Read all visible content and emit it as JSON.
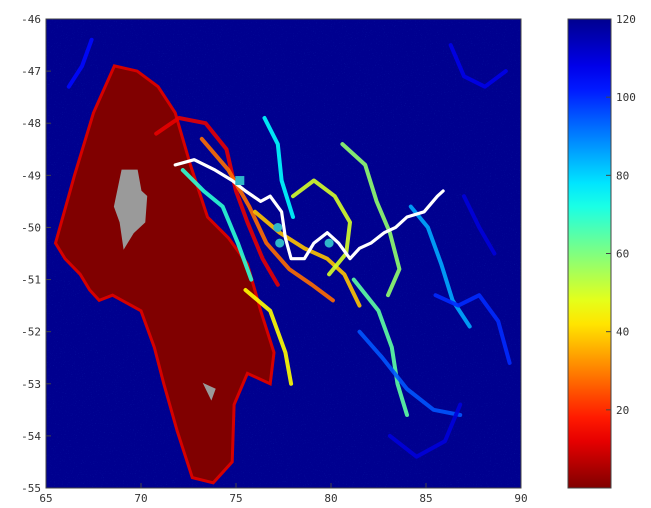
{
  "chart_data": {
    "type": "heatmap",
    "title": "",
    "xlabel": "",
    "ylabel": "",
    "xlim": [
      65,
      90
    ],
    "ylim": [
      -55,
      -46
    ],
    "x_ticks": [
      65,
      70,
      75,
      80,
      85,
      90
    ],
    "y_ticks": [
      -46,
      -47,
      -48,
      -49,
      -50,
      -51,
      -52,
      -53,
      -54,
      -55
    ],
    "x_tick_labels": [
      "65",
      "70",
      "75",
      "80",
      "85",
      "90"
    ],
    "y_tick_labels": [
      "-46",
      "-47",
      "-48",
      "-49",
      "-50",
      "-51",
      "-52",
      "-53",
      "-54",
      "-55"
    ],
    "colorbar": {
      "colormap": "jet-reversed",
      "range": [
        0,
        120
      ],
      "ticks": [
        20,
        40,
        60,
        80,
        100,
        120
      ],
      "tick_labels": [
        "20",
        "40",
        "60",
        "80",
        "100",
        "120"
      ]
    },
    "background_value": 120,
    "colors": {
      "background": "#00008f",
      "land": "#9a9a9a",
      "track": "#ffffff",
      "markers": "#2fb7c9"
    },
    "low_value_region": {
      "value_range": [
        0,
        10
      ],
      "outline_lonlat": [
        [
          65.5,
          -50.3
        ],
        [
          66.5,
          -49.0
        ],
        [
          67.5,
          -47.8
        ],
        [
          68.6,
          -46.9
        ],
        [
          69.8,
          -47.0
        ],
        [
          70.9,
          -47.3
        ],
        [
          71.8,
          -47.8
        ],
        [
          72.6,
          -48.8
        ],
        [
          73.5,
          -49.8
        ],
        [
          74.6,
          -50.2
        ],
        [
          75.6,
          -50.7
        ],
        [
          76.3,
          -51.6
        ],
        [
          77.0,
          -52.4
        ],
        [
          76.8,
          -53.0
        ],
        [
          75.6,
          -52.8
        ],
        [
          74.9,
          -53.4
        ],
        [
          74.8,
          -54.5
        ],
        [
          73.8,
          -54.9
        ],
        [
          72.7,
          -54.8
        ],
        [
          71.9,
          -53.9
        ],
        [
          71.2,
          -53.0
        ],
        [
          70.7,
          -52.3
        ],
        [
          70.0,
          -51.6
        ],
        [
          68.5,
          -51.3
        ],
        [
          67.8,
          -51.4
        ],
        [
          67.3,
          -51.2
        ],
        [
          66.8,
          -50.9
        ],
        [
          66.0,
          -50.6
        ]
      ]
    },
    "filaments": [
      {
        "value": 12,
        "path": [
          [
            70.8,
            -48.2
          ],
          [
            72.0,
            -47.9
          ],
          [
            73.4,
            -48.0
          ],
          [
            74.5,
            -48.5
          ],
          [
            75.0,
            -49.3
          ],
          [
            75.6,
            -49.9
          ],
          [
            76.4,
            -50.6
          ],
          [
            77.2,
            -51.1
          ]
        ]
      },
      {
        "value": 28,
        "path": [
          [
            73.2,
            -48.3
          ],
          [
            74.6,
            -48.9
          ],
          [
            75.7,
            -49.6
          ],
          [
            76.6,
            -50.3
          ],
          [
            77.8,
            -50.8
          ],
          [
            79.0,
            -51.1
          ],
          [
            80.1,
            -51.4
          ]
        ]
      },
      {
        "value": 38,
        "path": [
          [
            76.0,
            -49.7
          ],
          [
            77.3,
            -50.1
          ],
          [
            78.6,
            -50.4
          ],
          [
            79.8,
            -50.6
          ],
          [
            80.7,
            -50.9
          ],
          [
            81.5,
            -51.5
          ]
        ]
      },
      {
        "value": 45,
        "path": [
          [
            75.5,
            -51.2
          ],
          [
            76.8,
            -51.6
          ],
          [
            77.6,
            -52.4
          ],
          [
            77.9,
            -53.0
          ]
        ]
      },
      {
        "value": 50,
        "path": [
          [
            78.0,
            -49.4
          ],
          [
            79.1,
            -49.1
          ],
          [
            80.2,
            -49.4
          ],
          [
            81.0,
            -49.9
          ],
          [
            80.8,
            -50.5
          ],
          [
            79.9,
            -50.9
          ]
        ]
      },
      {
        "value": 58,
        "path": [
          [
            80.6,
            -48.4
          ],
          [
            81.8,
            -48.8
          ],
          [
            82.4,
            -49.5
          ],
          [
            83.1,
            -50.1
          ],
          [
            83.6,
            -50.8
          ],
          [
            83.0,
            -51.3
          ]
        ]
      },
      {
        "value": 64,
        "path": [
          [
            81.2,
            -51.0
          ],
          [
            82.5,
            -51.6
          ],
          [
            83.2,
            -52.3
          ],
          [
            83.5,
            -53.0
          ],
          [
            84.0,
            -53.6
          ]
        ]
      },
      {
        "value": 70,
        "path": [
          [
            72.2,
            -48.9
          ],
          [
            73.3,
            -49.3
          ],
          [
            74.3,
            -49.6
          ],
          [
            75.1,
            -50.3
          ],
          [
            75.8,
            -51.0
          ]
        ]
      },
      {
        "value": 75,
        "path": [
          [
            76.5,
            -47.9
          ],
          [
            77.2,
            -48.4
          ],
          [
            77.4,
            -49.1
          ],
          [
            78.0,
            -49.8
          ]
        ]
      },
      {
        "value": 85,
        "path": [
          [
            84.2,
            -49.6
          ],
          [
            85.1,
            -50.0
          ],
          [
            85.8,
            -50.7
          ],
          [
            86.4,
            -51.4
          ],
          [
            87.3,
            -51.9
          ]
        ]
      },
      {
        "value": 95,
        "path": [
          [
            81.5,
            -52.0
          ],
          [
            82.7,
            -52.5
          ],
          [
            84.0,
            -53.1
          ],
          [
            85.4,
            -53.5
          ],
          [
            86.8,
            -53.6
          ]
        ]
      },
      {
        "value": 100,
        "path": [
          [
            85.5,
            -51.3
          ],
          [
            86.7,
            -51.5
          ],
          [
            87.8,
            -51.3
          ],
          [
            88.8,
            -51.8
          ],
          [
            89.4,
            -52.6
          ]
        ]
      },
      {
        "value": 104,
        "path": [
          [
            66.2,
            -47.3
          ],
          [
            66.9,
            -46.9
          ],
          [
            67.4,
            -46.4
          ]
        ]
      },
      {
        "value": 108,
        "path": [
          [
            86.3,
            -46.5
          ],
          [
            87.0,
            -47.1
          ],
          [
            88.1,
            -47.3
          ],
          [
            89.2,
            -47.0
          ]
        ]
      },
      {
        "value": 110,
        "path": [
          [
            83.1,
            -54.0
          ],
          [
            84.5,
            -54.4
          ],
          [
            86.0,
            -54.1
          ],
          [
            86.8,
            -53.4
          ]
        ]
      },
      {
        "value": 110,
        "path": [
          [
            87.0,
            -49.4
          ],
          [
            87.8,
            -50.0
          ],
          [
            88.6,
            -50.5
          ]
        ]
      }
    ],
    "islands": [
      {
        "name": "",
        "outline_lonlat": [
          [
            69.0,
            -48.9
          ],
          [
            69.8,
            -48.9
          ],
          [
            70.0,
            -49.3
          ],
          [
            70.3,
            -49.4
          ],
          [
            70.2,
            -49.9
          ],
          [
            69.6,
            -50.1
          ],
          [
            69.1,
            -50.4
          ],
          [
            68.9,
            -49.9
          ],
          [
            68.6,
            -49.6
          ]
        ]
      },
      {
        "name": "",
        "outline_lonlat": [
          [
            73.3,
            -53.0
          ],
          [
            73.9,
            -53.1
          ],
          [
            73.7,
            -53.3
          ]
        ]
      }
    ],
    "track": [
      [
        71.8,
        -48.8
      ],
      [
        72.8,
        -48.7
      ],
      [
        73.9,
        -48.9
      ],
      [
        74.8,
        -49.1
      ],
      [
        75.5,
        -49.3
      ],
      [
        76.3,
        -49.5
      ],
      [
        76.8,
        -49.4
      ],
      [
        77.4,
        -49.7
      ],
      [
        77.6,
        -50.2
      ],
      [
        77.9,
        -50.6
      ],
      [
        78.6,
        -50.6
      ],
      [
        79.1,
        -50.3
      ],
      [
        79.8,
        -50.1
      ],
      [
        80.4,
        -50.3
      ],
      [
        81.0,
        -50.6
      ],
      [
        81.5,
        -50.4
      ],
      [
        82.1,
        -50.3
      ],
      [
        82.8,
        -50.1
      ],
      [
        83.4,
        -50.0
      ],
      [
        84.0,
        -49.8
      ],
      [
        84.9,
        -49.7
      ],
      [
        85.6,
        -49.4
      ],
      [
        85.9,
        -49.3
      ]
    ],
    "markers": [
      {
        "shape": "square",
        "lonlat": [
          75.2,
          -49.1
        ]
      },
      {
        "shape": "circle",
        "lonlat": [
          77.2,
          -50.0
        ]
      },
      {
        "shape": "circle",
        "lonlat": [
          77.3,
          -50.3
        ]
      },
      {
        "shape": "circle",
        "lonlat": [
          79.9,
          -50.3
        ]
      }
    ],
    "grid": false,
    "legend": "none"
  }
}
